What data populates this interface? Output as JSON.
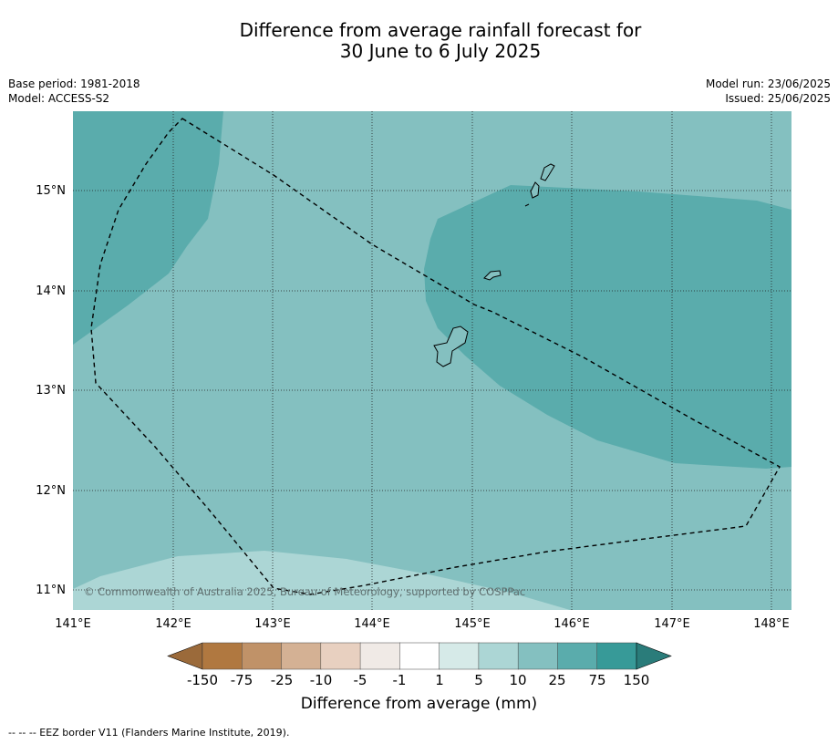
{
  "title_line1": "Difference from average rainfall forecast for",
  "title_line2": "30 June to 6 July 2025",
  "base_period": "Base period: 1981-2018",
  "model": "Model: ACCESS-S2",
  "model_run": "Model run: 23/06/2025",
  "issued": "Issued: 25/06/2025",
  "copyright": "© Commonwealth of Australia 2025, Bureau of Meteorology, supported by COSPPac",
  "lon_labels": [
    "141°E",
    "142°E",
    "143°E",
    "144°E",
    "145°E",
    "146°E",
    "147°E",
    "148°E"
  ],
  "lat_labels": [
    "15°N",
    "14°N",
    "13°N",
    "12°N",
    "11°N"
  ],
  "colorbar": {
    "labels": [
      "-150",
      "-75",
      "-25",
      "-10",
      "-5",
      "-1",
      "1",
      "5",
      "10",
      "25",
      "75",
      "150"
    ],
    "colors": [
      "#9b6a3a",
      "#b07840",
      "#c09268",
      "#d4b194",
      "#e8d0c0",
      "#f0eae6",
      "#ffffff",
      "#d6eae8",
      "#acd6d5",
      "#84c0c0",
      "#5aacac",
      "#379a98",
      "#2a7c7a"
    ],
    "title": "Difference from average (mm)"
  },
  "footer": "--  --  -- EEZ border V11 (Flanders Marine Institute, 2019)."
}
